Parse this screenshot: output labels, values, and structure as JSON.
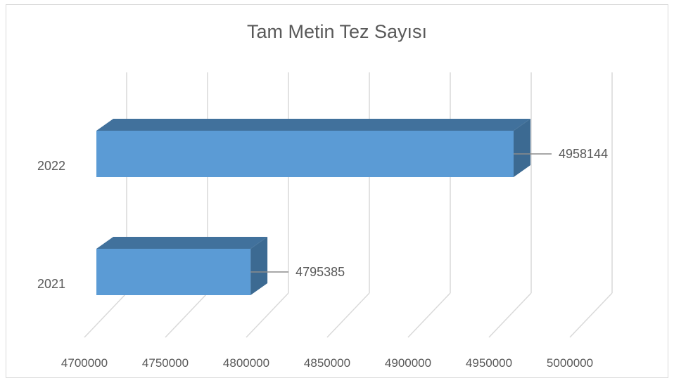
{
  "chart_data": {
    "type": "bar",
    "orientation": "horizontal",
    "style": "3d",
    "title": "Tam Metin Tez Sayısı",
    "categories": [
      "2021",
      "2022"
    ],
    "values": [
      4795385,
      4958144
    ],
    "data_labels": [
      "4795385",
      "4958144"
    ],
    "x_ticks": [
      "4700000",
      "4750000",
      "4800000",
      "4850000",
      "4900000",
      "4950000",
      "5000000"
    ],
    "xlim": [
      4700000,
      5000000
    ],
    "grid": true,
    "legend": "none",
    "colors": {
      "bar_front": "#5b9bd5",
      "bar_top": "#41719c",
      "bar_side": "#3c6a92",
      "grid": "#d9d9d9",
      "text": "#595959"
    }
  }
}
